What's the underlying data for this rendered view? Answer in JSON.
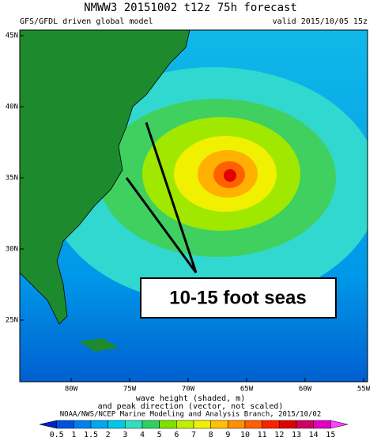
{
  "header": {
    "title": "NMWW3 20151002 t12z    75h forecast",
    "subtitle": "GFS/GFDL driven global model",
    "valid": "valid 2015/10/05 15z"
  },
  "map": {
    "lat_labels": [
      "45N",
      "40N",
      "35N",
      "30N",
      "25N"
    ],
    "lon_labels": [
      "80W",
      "75W",
      "70W",
      "65W",
      "60W",
      "55W"
    ]
  },
  "annotation": {
    "text": "10-15 foot seas"
  },
  "footer": {
    "lines": [
      "wave height (shaded, m)",
      "and peak direction (vector, not scaled)",
      "NOAA/NWS/NCEP Marine Modeling and Analysis Branch, 2015/10/02"
    ]
  },
  "colorbar": {
    "labels": [
      "0.5",
      "1",
      "1.5",
      "2",
      "3",
      "4",
      "5",
      "6",
      "7",
      "8",
      "9",
      "10",
      "11",
      "12",
      "13",
      "14",
      "15"
    ],
    "colors": [
      "#0020c0",
      "#0050e0",
      "#0080f0",
      "#00a8f0",
      "#00c8e8",
      "#30e0c0",
      "#30d060",
      "#80e000",
      "#c0f000",
      "#f0f000",
      "#ffc000",
      "#ff9000",
      "#ff6000",
      "#ff2000",
      "#e00000",
      "#d00060",
      "#e000c0",
      "#ff40ff"
    ]
  }
}
